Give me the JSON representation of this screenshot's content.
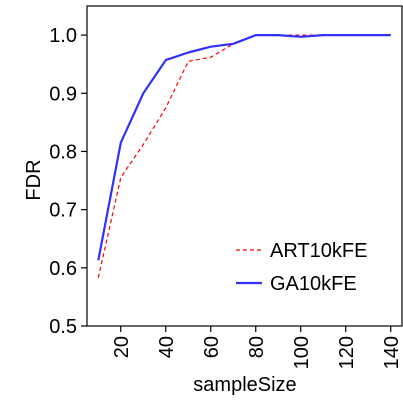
{
  "chart_data": {
    "type": "line",
    "title": "",
    "xlabel": "sampleSize",
    "ylabel": "FDR",
    "xlim": [
      5,
      145
    ],
    "ylim": [
      0.5,
      1.05
    ],
    "x_ticks": [
      20,
      40,
      60,
      80,
      100,
      120,
      140
    ],
    "y_ticks": [
      0.5,
      0.6,
      0.7,
      0.8,
      0.9,
      1.0
    ],
    "x_tick_labels": [
      "20",
      "40",
      "60",
      "80",
      "100",
      "120",
      "140"
    ],
    "y_tick_labels": [
      "0.5",
      "0.6",
      "0.7",
      "0.8",
      "0.9",
      "1.0"
    ],
    "grid": false,
    "legend_position": "bottom-right",
    "series": [
      {
        "name": "ART10kFE",
        "color": "#ff0000",
        "dash": "dashed",
        "x": [
          10,
          20,
          30,
          40,
          50,
          60,
          70,
          80,
          90,
          100,
          110,
          120,
          130,
          140
        ],
        "y": [
          0.583,
          0.755,
          0.812,
          0.875,
          0.955,
          0.962,
          0.985,
          1.0,
          1.0,
          1.0,
          1.0,
          1.0,
          1.0,
          1.0
        ]
      },
      {
        "name": "GA10kFE",
        "color": "#3030ff",
        "dash": "solid",
        "x": [
          10,
          20,
          30,
          40,
          50,
          60,
          70,
          80,
          90,
          100,
          110,
          120,
          130,
          140
        ],
        "y": [
          0.613,
          0.815,
          0.9,
          0.957,
          0.97,
          0.98,
          0.985,
          1.0,
          1.0,
          0.997,
          1.0,
          1.0,
          1.0,
          1.0
        ]
      }
    ]
  }
}
